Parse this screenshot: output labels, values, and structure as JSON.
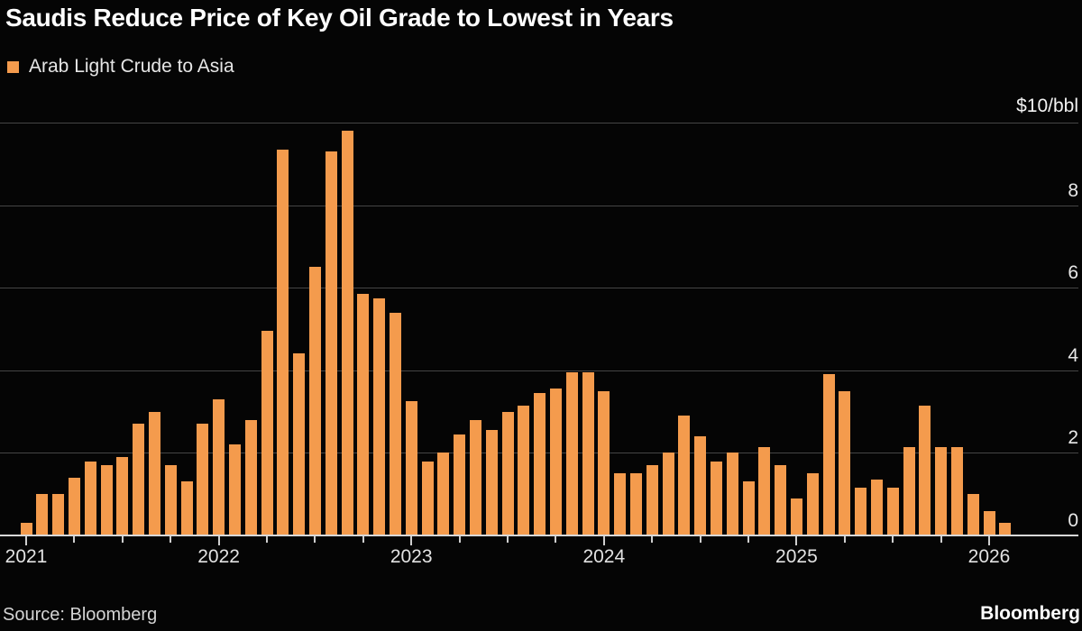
{
  "title": "Saudis Reduce Price of Key Oil Grade to Lowest in Years",
  "legend": {
    "label": "Arab Light Crude to Asia"
  },
  "footer": {
    "source": "Source: Bloomberg",
    "brand": "Bloomberg"
  },
  "colors": {
    "background": "#050505",
    "bar": "#F49B4D",
    "grid": "#454545",
    "axis_line": "#D8D8D8",
    "title_text": "#FFFFFF",
    "label_text": "#E3E3E3"
  },
  "chart_data": {
    "type": "bar",
    "title": "Saudis Reduce Price of Key Oil Grade to Lowest in Years",
    "series_name": "Arab Light Crude to Asia",
    "unit_top_label": "$10/bbl",
    "ylabel": "",
    "xlabel": "",
    "ylim": [
      0,
      10
    ],
    "ygrid_values": [
      0,
      2,
      4,
      6,
      8,
      10
    ],
    "ytick_labels": [
      "0",
      "2",
      "4",
      "6",
      "8"
    ],
    "grid": true,
    "legend_position": "top-left",
    "frequency": "monthly",
    "x_tick_labels": [
      "2021",
      "2022",
      "2023",
      "2024",
      "2025",
      "2026"
    ],
    "minor_tick_interval_months": 3,
    "months": [
      "2021-01",
      "2021-02",
      "2021-03",
      "2021-04",
      "2021-05",
      "2021-06",
      "2021-07",
      "2021-08",
      "2021-09",
      "2021-10",
      "2021-11",
      "2021-12",
      "2022-01",
      "2022-02",
      "2022-03",
      "2022-04",
      "2022-05",
      "2022-06",
      "2022-07",
      "2022-08",
      "2022-09",
      "2022-10",
      "2022-11",
      "2022-12",
      "2023-01",
      "2023-02",
      "2023-03",
      "2023-04",
      "2023-05",
      "2023-06",
      "2023-07",
      "2023-08",
      "2023-09",
      "2023-10",
      "2023-11",
      "2023-12",
      "2024-01",
      "2024-02",
      "2024-03",
      "2024-04",
      "2024-05",
      "2024-06",
      "2024-07",
      "2024-08",
      "2024-09",
      "2024-10",
      "2024-11",
      "2024-12",
      "2025-01",
      "2025-02",
      "2025-03",
      "2025-04",
      "2025-05",
      "2025-06",
      "2025-07",
      "2025-08",
      "2025-09",
      "2025-10",
      "2025-11",
      "2025-12",
      "2026-01",
      "2026-02"
    ],
    "values": [
      0.3,
      1.0,
      1.0,
      1.4,
      1.8,
      1.7,
      1.9,
      2.7,
      3.0,
      1.7,
      1.3,
      2.7,
      3.3,
      2.2,
      2.8,
      4.95,
      9.35,
      4.4,
      6.5,
      9.3,
      9.8,
      5.85,
      5.75,
      5.4,
      3.25,
      1.8,
      2.0,
      2.45,
      2.8,
      2.55,
      3.0,
      3.15,
      3.45,
      3.55,
      3.95,
      3.95,
      3.5,
      1.5,
      1.5,
      1.7,
      2.0,
      2.9,
      2.4,
      1.8,
      2.0,
      1.3,
      2.15,
      1.7,
      0.9,
      1.5,
      3.9,
      3.5,
      1.15,
      1.35,
      1.15,
      2.15,
      3.15,
      2.15,
      2.15,
      1.0,
      0.6,
      0.3
    ]
  }
}
